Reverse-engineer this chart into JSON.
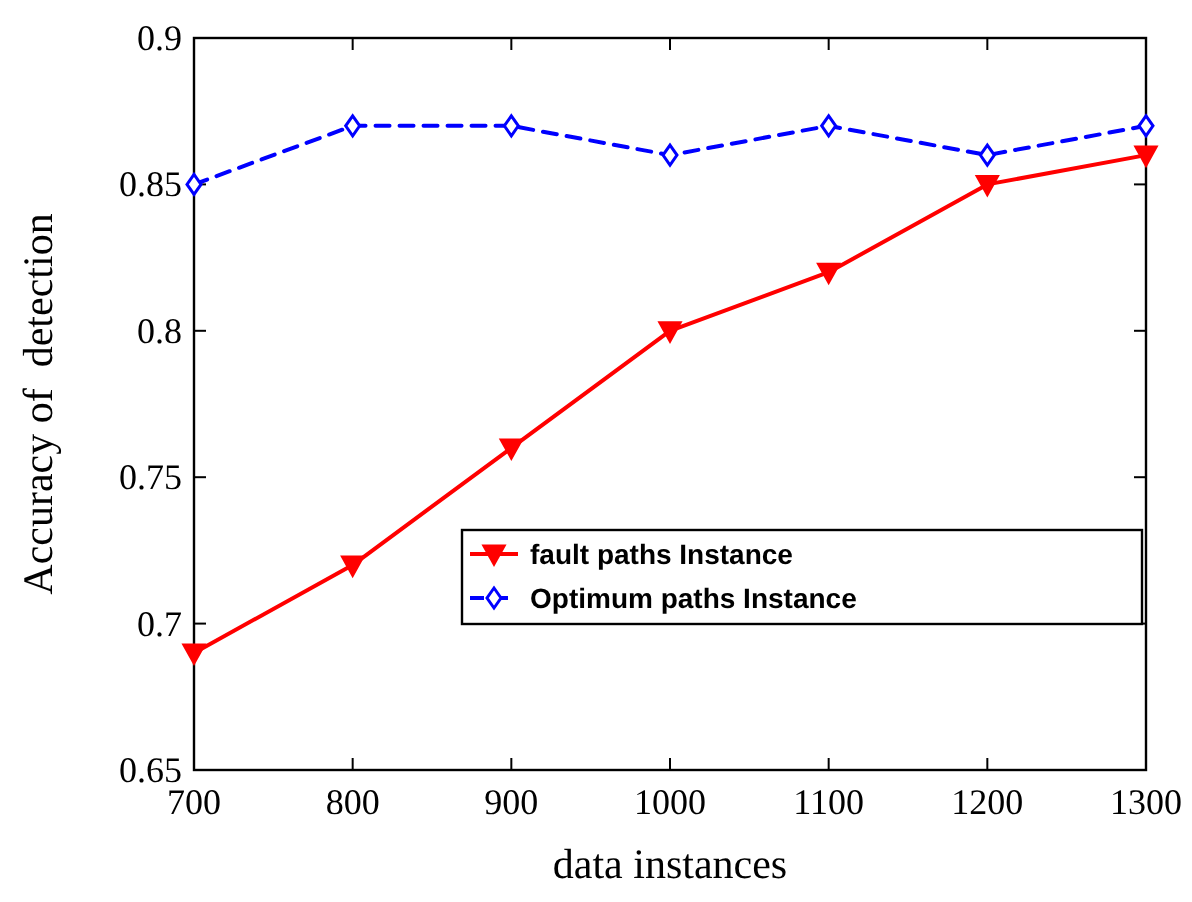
{
  "chart_data": {
    "type": "line",
    "xlabel": "data instances",
    "ylabel": "Accuracy of  detection",
    "x": [
      700,
      800,
      900,
      1000,
      1100,
      1200,
      1300
    ],
    "series": [
      {
        "name": "fault paths Instance",
        "color": "#ff0000",
        "marker": "triangle",
        "line_style": "solid",
        "values": [
          0.69,
          0.72,
          0.76,
          0.8,
          0.82,
          0.85,
          0.86
        ]
      },
      {
        "name": "Optimum paths Instance",
        "color": "#0000ff",
        "marker": "diamond",
        "line_style": "dashed",
        "values": [
          0.85,
          0.87,
          0.87,
          0.86,
          0.87,
          0.86,
          0.87
        ]
      }
    ],
    "xlim": [
      700,
      1300
    ],
    "xticks": [
      700,
      800,
      900,
      1000,
      1100,
      1200,
      1300
    ],
    "ylim": [
      0.65,
      0.9
    ],
    "yticks": [
      0.65,
      0.7,
      0.75,
      0.8,
      0.85,
      0.9
    ],
    "grid": false,
    "legend": "bottom right"
  }
}
